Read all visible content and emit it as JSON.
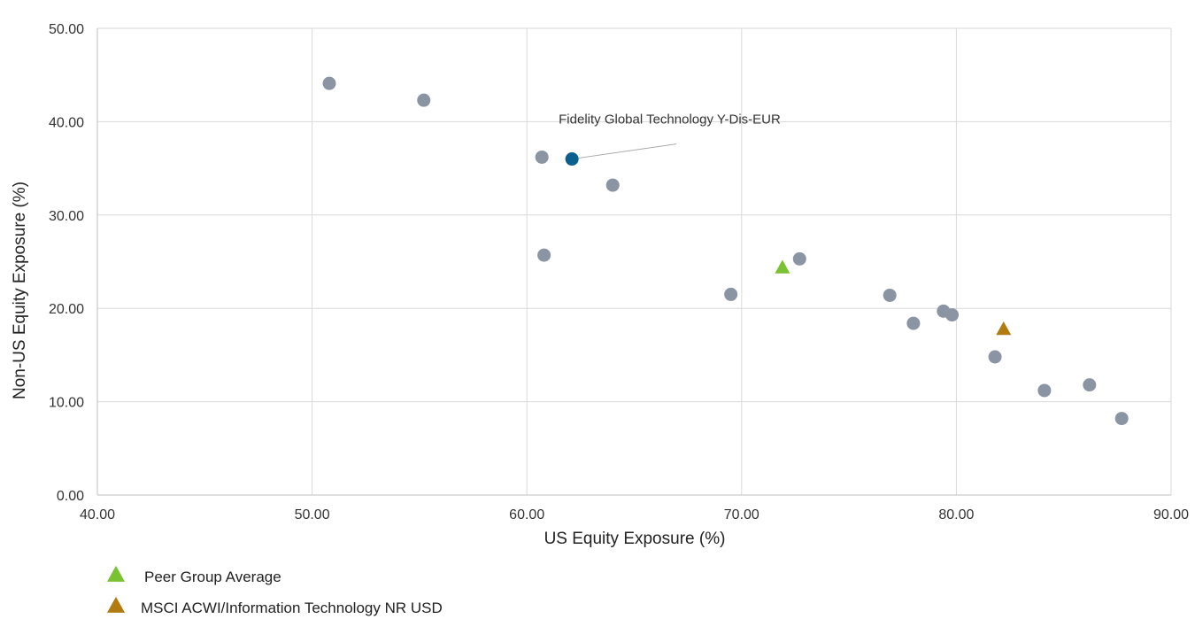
{
  "chart_data": {
    "type": "scatter",
    "xlabel": "US Equity Exposure (%)",
    "ylabel": "Non-US Equity Exposure (%)",
    "xlim": [
      40,
      90
    ],
    "ylim": [
      0,
      50
    ],
    "xticks": [
      "40.00",
      "50.00",
      "60.00",
      "70.00",
      "80.00",
      "90.00"
    ],
    "yticks": [
      "0.00",
      "10.00",
      "20.00",
      "30.00",
      "40.00",
      "50.00"
    ],
    "grid": true,
    "legend_position": "bottom-left",
    "series": [
      {
        "marker": "circle",
        "color": "#8a94a3",
        "points": [
          {
            "x": 50.8,
            "y": 44.1
          },
          {
            "x": 55.2,
            "y": 42.3
          },
          {
            "x": 60.7,
            "y": 36.2
          },
          {
            "x": 64.0,
            "y": 33.2
          },
          {
            "x": 60.8,
            "y": 25.7
          },
          {
            "x": 69.5,
            "y": 21.5
          },
          {
            "x": 72.7,
            "y": 25.3
          },
          {
            "x": 76.9,
            "y": 21.4
          },
          {
            "x": 78.0,
            "y": 18.4
          },
          {
            "x": 79.4,
            "y": 19.7
          },
          {
            "x": 79.8,
            "y": 19.3
          },
          {
            "x": 81.8,
            "y": 14.8
          },
          {
            "x": 84.1,
            "y": 11.2
          },
          {
            "x": 86.2,
            "y": 11.8
          },
          {
            "x": 87.7,
            "y": 8.2
          }
        ]
      },
      {
        "name": "Fidelity Global Technology Y-Dis-EUR",
        "marker": "circle",
        "color": "#0b5f8f",
        "points": [
          {
            "x": 62.1,
            "y": 36.0
          }
        ]
      },
      {
        "name": "Peer Group Average",
        "marker": "triangle",
        "color": "#7ac231",
        "points": [
          {
            "x": 71.9,
            "y": 24.3
          }
        ]
      },
      {
        "name": "MSCI ACWI/Information Technology NR USD",
        "marker": "triangle",
        "color": "#b27b10",
        "points": [
          {
            "x": 82.2,
            "y": 17.7
          }
        ]
      }
    ],
    "annotations": [
      {
        "text": "Fidelity Global Technology Y-Dis-EUR",
        "x": 62.1,
        "y": 36.0
      }
    ],
    "legend": [
      {
        "label": "Peer Group Average",
        "marker": "triangle",
        "color": "#7ac231"
      },
      {
        "label": "MSCI ACWI/Information Technology NR USD",
        "marker": "triangle",
        "color": "#b27b10"
      }
    ]
  }
}
